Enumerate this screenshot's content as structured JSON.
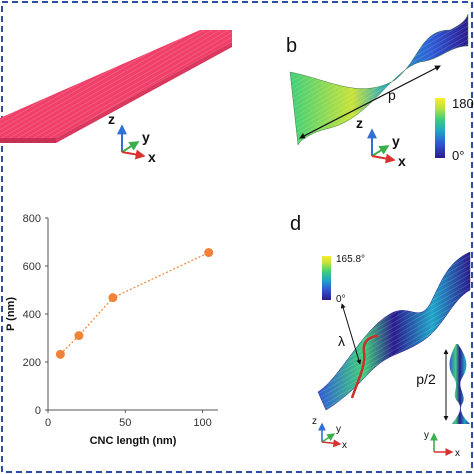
{
  "panels": {
    "b": {
      "label": "b",
      "pitch_label": "p",
      "colorbar_max": "180",
      "colorbar_min": "0°"
    },
    "c": {
      "label": "",
      "xlabel": "CNC length (nm)",
      "ylabel": "P (nm)"
    },
    "d": {
      "label": "d",
      "colorbar_max": "165.8°",
      "colorbar_min": "0°",
      "lambda_label": "λ",
      "half_pitch_label": "p/2"
    }
  },
  "axes_triads": {
    "z": "z",
    "y": "y",
    "x": "x"
  },
  "colors": {
    "border": "#2b4ea8",
    "ribbon": "#f0406a",
    "marker": "#f0833a",
    "line": "#f0833a",
    "colormap": [
      "#2b1b8f",
      "#2f5bd6",
      "#1fa5c8",
      "#3fcf7a",
      "#c8e23a",
      "#f7ef2b"
    ]
  },
  "chart_data": {
    "type": "scatter",
    "title": "",
    "xlabel": "CNC length (nm)",
    "ylabel": "P (nm)",
    "xlim": [
      0,
      110
    ],
    "ylim": [
      0,
      800
    ],
    "xticks": [
      0,
      50,
      100
    ],
    "yticks": [
      0,
      200,
      400,
      600,
      800
    ],
    "grid": false,
    "series": [
      {
        "x": [
          8,
          20,
          42,
          104
        ],
        "y": [
          232,
          310,
          468,
          656
        ],
        "line": "dotted"
      }
    ]
  }
}
